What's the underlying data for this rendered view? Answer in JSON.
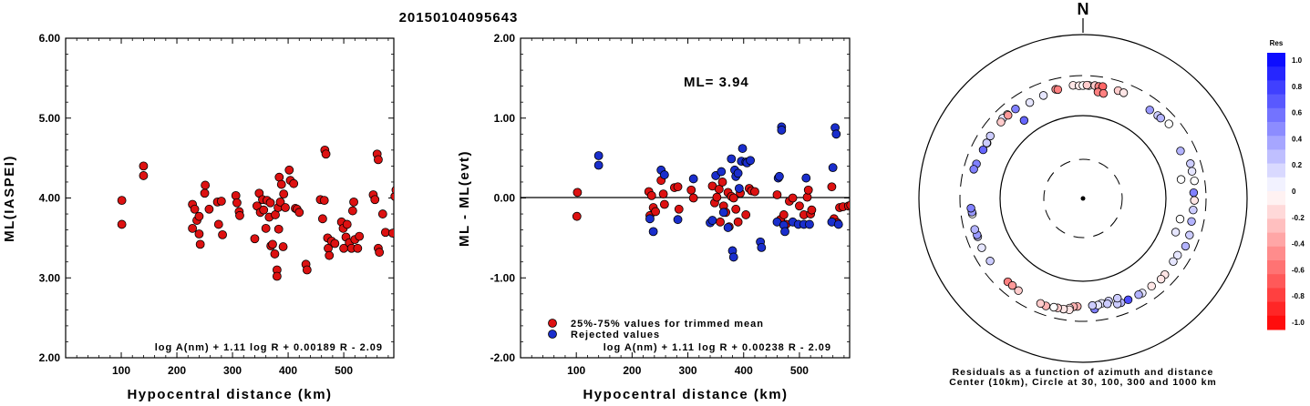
{
  "title": "20150104095643",
  "chart_data": [
    {
      "type": "scatter",
      "xlabel": "Hypocentral distance (km)",
      "ylabel": "ML(IASPEI)",
      "xlim": [
        0,
        590
      ],
      "ylim": [
        2.0,
        6.0
      ],
      "x_ticks": [
        "100",
        "200",
        "300",
        "400",
        "500"
      ],
      "y_ticks": [
        "2.00",
        "3.00",
        "4.00",
        "5.00",
        "6.00"
      ],
      "formula": "log A(nm) + 1.11 log R + 0.00189 R - 2.09",
      "points": [
        [
          101,
          3.97
        ],
        [
          101,
          3.67
        ],
        [
          140,
          4.4
        ],
        [
          140,
          4.28
        ],
        [
          228,
          3.92
        ],
        [
          228,
          3.62
        ],
        [
          232,
          3.86
        ],
        [
          236,
          3.72
        ],
        [
          240,
          3.77
        ],
        [
          240,
          3.55
        ],
        [
          242,
          3.42
        ],
        [
          250,
          4.06
        ],
        [
          251,
          4.16
        ],
        [
          258,
          3.86
        ],
        [
          273,
          3.95
        ],
        [
          275,
          3.67
        ],
        [
          280,
          3.96
        ],
        [
          282,
          3.54
        ],
        [
          306,
          4.03
        ],
        [
          308,
          3.94
        ],
        [
          312,
          3.83
        ],
        [
          313,
          3.78
        ],
        [
          340,
          3.49
        ],
        [
          344,
          3.9
        ],
        [
          348,
          4.06
        ],
        [
          350,
          3.82
        ],
        [
          354,
          3.98
        ],
        [
          356,
          3.85
        ],
        [
          360,
          3.62
        ],
        [
          362,
          3.97
        ],
        [
          366,
          3.76
        ],
        [
          368,
          3.94
        ],
        [
          369,
          3.4
        ],
        [
          372,
          3.42
        ],
        [
          376,
          3.3
        ],
        [
          377,
          3.79
        ],
        [
          380,
          3.1
        ],
        [
          380,
          3.02
        ],
        [
          382,
          3.88
        ],
        [
          383,
          3.61
        ],
        [
          384,
          4.26
        ],
        [
          386,
          3.95
        ],
        [
          388,
          4.17
        ],
        [
          391,
          3.39
        ],
        [
          392,
          4.05
        ],
        [
          395,
          3.88
        ],
        [
          402,
          4.35
        ],
        [
          404,
          4.22
        ],
        [
          410,
          4.18
        ],
        [
          413,
          3.87
        ],
        [
          416,
          3.86
        ],
        [
          420,
          3.82
        ],
        [
          432,
          3.17
        ],
        [
          434,
          3.1
        ],
        [
          458,
          3.98
        ],
        [
          462,
          3.74
        ],
        [
          465,
          3.97
        ],
        [
          466,
          4.6
        ],
        [
          468,
          4.55
        ],
        [
          471,
          3.5
        ],
        [
          472,
          3.37
        ],
        [
          474,
          3.28
        ],
        [
          478,
          3.46
        ],
        [
          484,
          3.43
        ],
        [
          496,
          3.7
        ],
        [
          499,
          3.62
        ],
        [
          500,
          3.37
        ],
        [
          504,
          3.51
        ],
        [
          506,
          3.67
        ],
        [
          510,
          3.44
        ],
        [
          514,
          3.37
        ],
        [
          516,
          3.84
        ],
        [
          518,
          3.95
        ],
        [
          520,
          3.48
        ],
        [
          525,
          3.37
        ],
        [
          528,
          3.52
        ],
        [
          553,
          4.04
        ],
        [
          556,
          3.98
        ],
        [
          560,
          4.55
        ],
        [
          562,
          4.48
        ],
        [
          562,
          3.37
        ],
        [
          564,
          3.32
        ],
        [
          570,
          3.8
        ],
        [
          575,
          3.57
        ],
        [
          588,
          3.56
        ],
        [
          592,
          4.02
        ],
        [
          594,
          4.1
        ]
      ]
    },
    {
      "type": "scatter",
      "xlabel": "Hypocentral distance (km)",
      "ylabel": "ML - ML(evt)",
      "xlim": [
        0,
        590
      ],
      "ylim": [
        -2.0,
        2.0
      ],
      "x_ticks": [
        "100",
        "200",
        "300",
        "400",
        "500"
      ],
      "y_ticks": [
        "-2.00",
        "-1.00",
        "0.00",
        "1.00",
        "2.00"
      ],
      "reference_line": 0.0,
      "annotation": "ML= 3.94",
      "formula": "log A(nm) + 1.11 log R + 0.00238 R - 2.09",
      "legend": [
        {
          "label": "25%-75% values for trimmed mean",
          "color": "#dd1111"
        },
        {
          "label": "Rejected values",
          "color": "#1a2ecc"
        }
      ],
      "series": [
        {
          "name": "25%-75% values for trimmed mean",
          "color": "#dd1111",
          "points": [
            [
              102,
              0.07
            ],
            [
              101,
              -0.23
            ],
            [
              230,
              0.08
            ],
            [
              232,
              -0.22
            ],
            [
              235,
              0.03
            ],
            [
              238,
              -0.12
            ],
            [
              242,
              -0.17
            ],
            [
              252,
              0.22
            ],
            [
              256,
              0.05
            ],
            [
              258,
              -0.08
            ],
            [
              276,
              0.13
            ],
            [
              282,
              0.14
            ],
            [
              284,
              -0.14
            ],
            [
              306,
              0.1
            ],
            [
              310,
              0.0
            ],
            [
              344,
              0.15
            ],
            [
              348,
              -0.06
            ],
            [
              352,
              0.01
            ],
            [
              356,
              0.11
            ],
            [
              358,
              -0.3
            ],
            [
              362,
              0.2
            ],
            [
              364,
              -0.1
            ],
            [
              368,
              -0.18
            ],
            [
              372,
              0.07
            ],
            [
              374,
              -0.36
            ],
            [
              378,
              0.02
            ],
            [
              382,
              0.0
            ],
            [
              386,
              -0.14
            ],
            [
              390,
              -0.3
            ],
            [
              394,
              0.06
            ],
            [
              404,
              -0.21
            ],
            [
              410,
              0.12
            ],
            [
              414,
              0.09
            ],
            [
              420,
              0.08
            ],
            [
              460,
              0.04
            ],
            [
              466,
              -0.27
            ],
            [
              472,
              -0.21
            ],
            [
              476,
              -0.33
            ],
            [
              482,
              -0.04
            ],
            [
              488,
              0.0
            ],
            [
              500,
              -0.1
            ],
            [
              508,
              -0.21
            ],
            [
              514,
              0.01
            ],
            [
              516,
              0.1
            ],
            [
              520,
              -0.2
            ],
            [
              522,
              -0.15
            ],
            [
              558,
              0.14
            ],
            [
              562,
              -0.26
            ],
            [
              568,
              -0.31
            ],
            [
              572,
              -0.12
            ],
            [
              578,
              -0.11
            ],
            [
              588,
              -0.1
            ],
            [
              592,
              -0.09
            ]
          ]
        },
        {
          "name": "Rejected values",
          "color": "#1a2ecc",
          "points": [
            [
              140,
              0.53
            ],
            [
              140,
              0.41
            ],
            [
              232,
              -0.26
            ],
            [
              238,
              -0.42
            ],
            [
              252,
              0.35
            ],
            [
              258,
              0.29
            ],
            [
              282,
              -0.27
            ],
            [
              310,
              0.24
            ],
            [
              340,
              -0.31
            ],
            [
              344,
              -0.28
            ],
            [
              350,
              0.28
            ],
            [
              360,
              0.33
            ],
            [
              364,
              -0.18
            ],
            [
              372,
              -0.37
            ],
            [
              378,
              0.49
            ],
            [
              380,
              -0.66
            ],
            [
              382,
              -0.74
            ],
            [
              384,
              0.35
            ],
            [
              386,
              0.27
            ],
            [
              390,
              0.31
            ],
            [
              392,
              0.12
            ],
            [
              396,
              0.46
            ],
            [
              398,
              0.62
            ],
            [
              404,
              0.45
            ],
            [
              406,
              0.44
            ],
            [
              412,
              0.47
            ],
            [
              430,
              -0.55
            ],
            [
              432,
              -0.62
            ],
            [
              460,
              -0.3
            ],
            [
              462,
              0.25
            ],
            [
              464,
              0.27
            ],
            [
              468,
              0.89
            ],
            [
              468,
              0.85
            ],
            [
              472,
              -0.34
            ],
            [
              474,
              -0.42
            ],
            [
              488,
              -0.3
            ],
            [
              498,
              -0.33
            ],
            [
              508,
              -0.33
            ],
            [
              512,
              0.25
            ],
            [
              518,
              -0.33
            ],
            [
              558,
              -0.3
            ],
            [
              560,
              0.38
            ],
            [
              564,
              0.88
            ],
            [
              566,
              0.8
            ],
            [
              570,
              -0.33
            ]
          ]
        }
      ]
    }
  ],
  "polar": {
    "north_label": "N",
    "caption_line1": "Residuals as a function of azimuth and distance",
    "caption_line2": "Center (10km), Circle at 30, 100, 300 and 1000 km",
    "colorbar": {
      "title": "Res",
      "labels": [
        "1.0",
        "0.8",
        "0.6",
        "0.4",
        "0.2",
        "0",
        "-0.2",
        "-0.4",
        "-0.6",
        "-0.8",
        "-1.0"
      ],
      "positive_color": "#0000ff",
      "negative_color": "#ff0000"
    },
    "points": [
      [
        -14,
        236,
        -0.4
      ],
      [
        -13,
        231,
        -0.5
      ],
      [
        -5,
        243,
        -0.1
      ],
      [
        -2,
        238,
        -0.1
      ],
      [
        0,
        239,
        0.0
      ],
      [
        3,
        240,
        0.0
      ],
      [
        2,
        242,
        -0.2
      ],
      [
        6,
        243,
        -0.2
      ],
      [
        8,
        240,
        -0.5
      ],
      [
        10,
        244,
        -0.6
      ],
      [
        18,
        242,
        -0.2
      ],
      [
        21,
        241,
        -0.1
      ],
      [
        8,
        205,
        -0.5
      ],
      [
        11,
        202,
        -0.5
      ],
      [
        -21,
        222,
        0.1
      ],
      [
        -29,
        218,
        0.1
      ],
      [
        -42,
        239,
        -0.1
      ],
      [
        -45,
        242,
        0.1
      ],
      [
        37,
        225,
        0.4
      ],
      [
        42,
        230,
        0.2
      ],
      [
        44,
        231,
        0.3
      ],
      [
        49,
        244,
        0.0
      ],
      [
        -37,
        156,
        0.6
      ],
      [
        -60,
        224,
        0.0
      ],
      [
        64,
        210,
        0.3
      ],
      [
        79,
        165,
        0.0
      ],
      [
        72,
        238,
        0.2
      ],
      [
        76,
        234,
        0.1
      ],
      [
        81,
        237,
        0.0
      ],
      [
        91,
        228,
        -0.1
      ],
      [
        87,
        224,
        0.5
      ],
      [
        96,
        224,
        0.2
      ],
      [
        102,
        225,
        0.3
      ],
      [
        102,
        162,
        0.0
      ],
      [
        110,
        159,
        0.1
      ],
      [
        109,
        236,
        0.2
      ],
      [
        115,
        239,
        0.3
      ],
      [
        121,
        221,
        0.1
      ],
      [
        125,
        220,
        0.1
      ],
      [
        133,
        231,
        -0.1
      ],
      [
        136,
        234,
        -0.1
      ],
      [
        142,
        228,
        -0.1
      ],
      [
        148,
        230,
        0.1
      ],
      [
        150,
        227,
        0.3
      ],
      [
        156,
        226,
        0.7
      ],
      [
        160,
        226,
        0.3
      ],
      [
        162,
        226,
        0.2
      ],
      [
        161,
        194,
        0.2
      ],
      [
        166,
        195,
        0.2
      ],
      [
        170,
        200,
        0.1
      ],
      [
        167,
        209,
        0.2
      ],
      [
        174,
        228,
        0.5
      ],
      [
        172,
        206,
        0.1
      ],
      [
        175,
        205,
        0.2
      ],
      [
        183,
        209,
        -0.3
      ],
      [
        185,
        212,
        -0.3
      ],
      [
        187,
        223,
        -0.1
      ],
      [
        187,
        234,
        -0.1
      ],
      [
        190,
        235,
        -0.1
      ],
      [
        193,
        235,
        -0.2
      ],
      [
        195,
        237,
        0.0
      ],
      [
        199,
        244,
        -0.3
      ],
      [
        202,
        241,
        -0.2
      ],
      [
        215,
        236,
        -0.2
      ],
      [
        222,
        234,
        -0.5
      ],
      [
        219,
        233,
        -0.4
      ],
      [
        236,
        232,
        0.2
      ],
      [
        244,
        236,
        0.1
      ],
      [
        250,
        232,
        0.2
      ],
      [
        251,
        232,
        0.4
      ],
      [
        254,
        236,
        0.3
      ],
      [
        262,
        230,
        0.0
      ],
      [
        263,
        231,
        0.4
      ],
      [
        265,
        235,
        0.5
      ],
      [
        288,
        232,
        0.5
      ],
      [
        285,
        239,
        0.5
      ],
      [
        296,
        226,
        0.6
      ],
      [
        300,
        227,
        0.2
      ],
      [
        304,
        231,
        0.2
      ],
      [
        313,
        233,
        -0.2
      ],
      [
        318,
        232,
        -0.4
      ],
      [
        323,
        233,
        0.5
      ]
    ]
  }
}
